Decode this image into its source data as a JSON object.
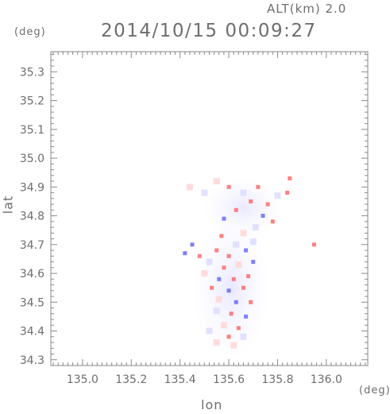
{
  "header": {
    "alt_label": "ALT(km) 2.0",
    "timestamp": "2014/10/15 00:09:27"
  },
  "chart_data": {
    "type": "scatter",
    "title": "2014/10/15 00:09:27",
    "xlabel": "lon",
    "ylabel": "lat",
    "x_unit": "(deg)",
    "y_unit": "(deg)",
    "xlim": [
      134.87,
      136.17
    ],
    "ylim": [
      34.28,
      35.37
    ],
    "x_ticks": [
      135.0,
      135.2,
      135.4,
      135.6,
      135.8,
      136.0
    ],
    "x_tick_labels": [
      "135.0",
      "135.2",
      "135.4",
      "135.6",
      "135.8",
      "136.0"
    ],
    "y_ticks": [
      34.3,
      34.4,
      34.5,
      34.6,
      34.7,
      34.8,
      34.9,
      35.0,
      35.1,
      35.2,
      35.3
    ],
    "y_tick_labels": [
      "34.3",
      "34.4",
      "34.5",
      "34.6",
      "34.7",
      "34.8",
      "34.9",
      "35.0",
      "35.1",
      "35.2",
      "35.3"
    ],
    "colors": {
      "positive": "#ff6a6a",
      "negative": "#6a6aff",
      "light_positive": "#ffd6d6",
      "light_negative": "#dcdcff",
      "frame": "#8a8a8a"
    },
    "series": [
      {
        "values": [
          {
            "x": 135.63,
            "y": 34.7,
            "v": -0.2
          },
          {
            "x": 135.55,
            "y": 34.68,
            "v": 0.6
          },
          {
            "x": 135.6,
            "y": 34.66,
            "v": 0.5
          },
          {
            "x": 135.67,
            "y": 34.68,
            "v": -0.5
          },
          {
            "x": 135.52,
            "y": 34.64,
            "v": -0.4
          },
          {
            "x": 135.58,
            "y": 34.62,
            "v": 0.7
          },
          {
            "x": 135.64,
            "y": 34.63,
            "v": 0.4
          },
          {
            "x": 135.7,
            "y": 34.64,
            "v": -0.6
          },
          {
            "x": 135.5,
            "y": 34.6,
            "v": 0.3
          },
          {
            "x": 135.56,
            "y": 34.58,
            "v": -0.7
          },
          {
            "x": 135.62,
            "y": 34.58,
            "v": 0.6
          },
          {
            "x": 135.68,
            "y": 34.59,
            "v": 0.5
          },
          {
            "x": 135.53,
            "y": 34.55,
            "v": 0.6
          },
          {
            "x": 135.6,
            "y": 34.54,
            "v": -0.5
          },
          {
            "x": 135.66,
            "y": 34.55,
            "v": 0.7
          },
          {
            "x": 135.56,
            "y": 34.51,
            "v": 0.4
          },
          {
            "x": 135.63,
            "y": 34.5,
            "v": -0.6
          },
          {
            "x": 135.69,
            "y": 34.5,
            "v": 0.5
          },
          {
            "x": 135.55,
            "y": 34.47,
            "v": -0.4
          },
          {
            "x": 135.61,
            "y": 34.46,
            "v": 0.6
          },
          {
            "x": 135.67,
            "y": 34.45,
            "v": -0.5
          },
          {
            "x": 135.58,
            "y": 34.42,
            "v": 0.3
          },
          {
            "x": 135.64,
            "y": 34.41,
            "v": 0.6
          },
          {
            "x": 135.52,
            "y": 34.4,
            "v": -0.3
          },
          {
            "x": 135.6,
            "y": 34.38,
            "v": 0.5
          },
          {
            "x": 135.66,
            "y": 34.38,
            "v": -0.4
          },
          {
            "x": 135.55,
            "y": 34.36,
            "v": 0.4
          },
          {
            "x": 135.62,
            "y": 34.35,
            "v": 0.3
          },
          {
            "x": 135.58,
            "y": 34.79,
            "v": -0.6
          },
          {
            "x": 135.63,
            "y": 34.82,
            "v": 0.5
          },
          {
            "x": 135.69,
            "y": 34.85,
            "v": 0.6
          },
          {
            "x": 135.74,
            "y": 34.8,
            "v": -0.5
          },
          {
            "x": 135.66,
            "y": 34.88,
            "v": -0.4
          },
          {
            "x": 135.72,
            "y": 34.9,
            "v": 0.6
          },
          {
            "x": 135.8,
            "y": 34.87,
            "v": -0.3
          },
          {
            "x": 135.85,
            "y": 34.93,
            "v": 0.7
          },
          {
            "x": 135.84,
            "y": 34.88,
            "v": 0.6
          },
          {
            "x": 135.55,
            "y": 34.92,
            "v": 0.4
          },
          {
            "x": 135.5,
            "y": 34.88,
            "v": -0.3
          },
          {
            "x": 135.44,
            "y": 34.9,
            "v": 0.3
          },
          {
            "x": 135.6,
            "y": 34.9,
            "v": 0.5
          },
          {
            "x": 135.76,
            "y": 34.84,
            "v": 0.5
          },
          {
            "x": 135.71,
            "y": 34.76,
            "v": -0.4
          },
          {
            "x": 135.66,
            "y": 34.74,
            "v": 0.4
          },
          {
            "x": 135.78,
            "y": 34.78,
            "v": 0.6
          },
          {
            "x": 135.45,
            "y": 34.7,
            "v": -0.6
          },
          {
            "x": 135.48,
            "y": 34.66,
            "v": 0.5
          },
          {
            "x": 135.42,
            "y": 34.67,
            "v": -0.5
          },
          {
            "x": 135.95,
            "y": 34.7,
            "v": 0.9
          },
          {
            "x": 135.57,
            "y": 34.73,
            "v": 0.5
          },
          {
            "x": 135.7,
            "y": 34.71,
            "v": -0.3
          }
        ]
      }
    ],
    "grid": false,
    "legend": "none"
  }
}
